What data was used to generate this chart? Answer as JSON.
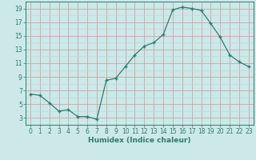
{
  "xlabel": "Humidex (Indice chaleur)",
  "x_values": [
    0,
    1,
    2,
    3,
    4,
    5,
    6,
    7,
    8,
    9,
    10,
    11,
    12,
    13,
    14,
    15,
    16,
    17,
    18,
    19,
    20,
    21,
    22,
    23
  ],
  "y_values": [
    6.5,
    6.3,
    5.2,
    4.0,
    4.2,
    3.2,
    3.2,
    2.8,
    8.5,
    8.8,
    10.5,
    12.2,
    13.5,
    14.0,
    15.2,
    18.8,
    19.2,
    19.0,
    18.7,
    16.8,
    14.8,
    12.2,
    11.2,
    10.5
  ],
  "line_color": "#2e7d6e",
  "marker_color": "#2e7d6e",
  "bg_color": "#cce8e8",
  "grid_color_major": "#c8a8a8",
  "grid_color_minor": "#b8d8d8",
  "ylim": [
    2,
    20
  ],
  "xlim": [
    -0.5,
    23.5
  ],
  "yticks": [
    3,
    5,
    7,
    9,
    11,
    13,
    15,
    17,
    19
  ],
  "xticks": [
    0,
    1,
    2,
    3,
    4,
    5,
    6,
    7,
    8,
    9,
    10,
    11,
    12,
    13,
    14,
    15,
    16,
    17,
    18,
    19,
    20,
    21,
    22,
    23
  ],
  "xlabel_fontsize": 6.5,
  "tick_fontsize": 5.5
}
